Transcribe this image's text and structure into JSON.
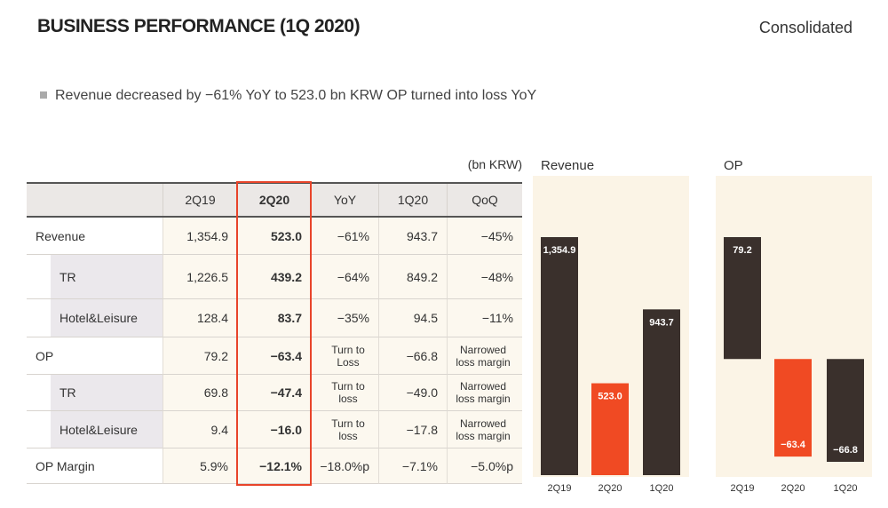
{
  "header": {
    "title": "BUSINESS PERFORMANCE (1Q 2020)",
    "scope": "Consolidated"
  },
  "summary": "Revenue decreased by −61% YoY to 523.0 bn KRW OP turned into loss YoY",
  "table": {
    "unit": "(bn KRW)",
    "columns": [
      "2Q19",
      "2Q20",
      "YoY",
      "1Q20",
      "QoQ"
    ],
    "rows": [
      {
        "label": "Revenue",
        "cells": [
          "1,354.9",
          "523.0",
          "−61%",
          "943.7",
          "−45%"
        ],
        "children": [
          {
            "label": "TR",
            "cells": [
              "1,226.5",
              "439.2",
              "−64%",
              "849.2",
              "−48%"
            ]
          },
          {
            "label": "Hotel&Leisure",
            "cells": [
              "128.4",
              "83.7",
              "−35%",
              "94.5",
              "−11%"
            ]
          }
        ]
      },
      {
        "label": "OP",
        "cells": [
          "79.2",
          "−63.4",
          "Turn to Loss",
          "−66.8",
          "Narrowed loss margin"
        ],
        "children": [
          {
            "label": "TR",
            "cells": [
              "69.8",
              "−47.4",
              "Turn to loss",
              "−49.0",
              "Narrowed loss margin"
            ]
          },
          {
            "label": "Hotel&Leisure",
            "cells": [
              "9.4",
              "−16.0",
              "Turn to loss",
              "−17.8",
              "Narrowed loss margin"
            ]
          }
        ]
      },
      {
        "label": "OP Margin",
        "cells": [
          "5.9%",
          "−12.1%",
          "−18.0%p",
          "−7.1%",
          "−5.0%p"
        ]
      }
    ]
  },
  "chart_data": [
    {
      "type": "bar",
      "title": "Revenue",
      "categories": [
        "2Q19",
        "2Q20",
        "1Q20"
      ],
      "values": [
        1354.9,
        523.0,
        943.7
      ],
      "value_labels": [
        "1,354.9",
        "523.0",
        "943.7"
      ],
      "colors": [
        "#3a302c",
        "#f04a23",
        "#3a302c"
      ]
    },
    {
      "type": "bar",
      "title": "OP",
      "categories": [
        "2Q19",
        "2Q20",
        "1Q20"
      ],
      "values": [
        79.2,
        -63.4,
        -66.8
      ],
      "value_labels": [
        "79.2",
        "−63.4",
        "−66.8"
      ],
      "colors": [
        "#3a302c",
        "#f04a23",
        "#3a302c"
      ]
    }
  ]
}
